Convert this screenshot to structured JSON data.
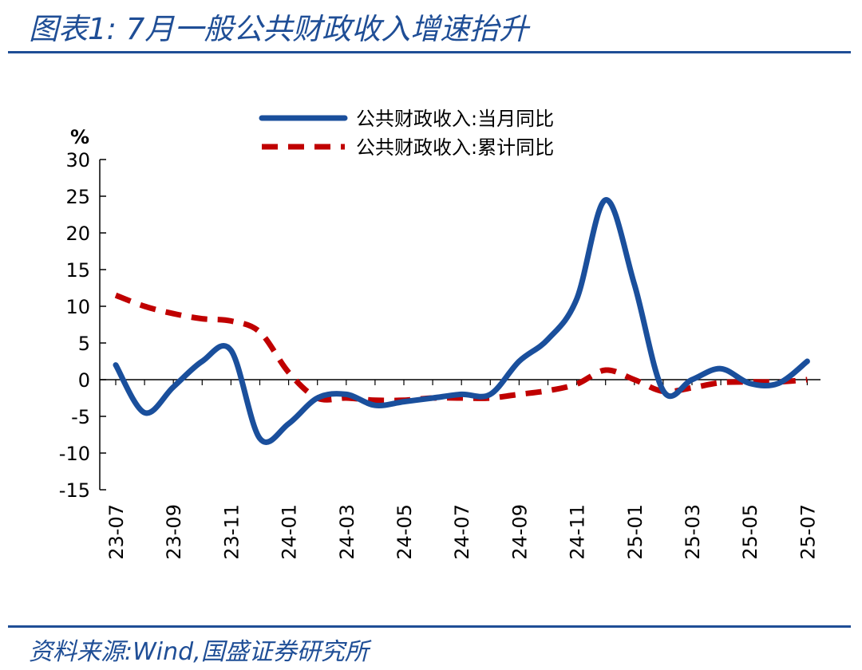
{
  "header": {
    "title": "图表1:  7月一般公共财政收入增速抬升"
  },
  "footer": {
    "source": "资料来源:Wind,国盛证券研究所"
  },
  "colors": {
    "accent": "#1f4e96",
    "series_monthly": "#1a4f9c",
    "series_cumulative": "#c00000"
  },
  "chart_data": {
    "type": "line",
    "unit": "%",
    "ylim": [
      -15,
      30
    ],
    "yticks": [
      30,
      25,
      20,
      15,
      10,
      5,
      0,
      -5,
      -10,
      -15
    ],
    "legend_position": "top-center",
    "grid": false,
    "x": [
      "23-07",
      "23-08",
      "23-09",
      "23-10",
      "23-11",
      "23-12",
      "24-01",
      "24-02",
      "24-03",
      "24-04",
      "24-05",
      "24-06",
      "24-07",
      "24-08",
      "24-09",
      "24-10",
      "24-11",
      "24-12",
      "25-01",
      "25-02",
      "25-03",
      "25-04",
      "25-05",
      "25-06",
      "25-07"
    ],
    "xticks": [
      "23-07",
      "23-09",
      "23-11",
      "24-01",
      "24-03",
      "24-05",
      "24-07",
      "24-09",
      "24-11",
      "25-01",
      "25-03",
      "25-05",
      "25-07"
    ],
    "series": [
      {
        "name": "公共财政收入:当月同比",
        "style": "solid",
        "values": [
          2.0,
          -4.5,
          -1.0,
          2.5,
          4.0,
          -8.0,
          -6.0,
          -2.5,
          -2.0,
          -3.5,
          -3.0,
          -2.5,
          -2.0,
          -2.0,
          2.5,
          5.5,
          11.0,
          24.5,
          13.0,
          -1.5,
          0.0,
          1.5,
          -0.5,
          -0.5,
          2.5
        ]
      },
      {
        "name": "公共财政收入:累计同比",
        "style": "dashed",
        "values": [
          11.5,
          10.0,
          9.0,
          8.3,
          8.0,
          6.5,
          1.0,
          -2.5,
          -2.5,
          -2.8,
          -2.8,
          -2.5,
          -2.5,
          -2.5,
          -2.0,
          -1.5,
          -0.6,
          1.3,
          0.0,
          -1.6,
          -1.1,
          -0.4,
          -0.3,
          -0.3,
          0.0
        ]
      }
    ]
  }
}
